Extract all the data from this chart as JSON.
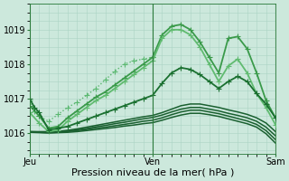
{
  "background_color": "#cce8dc",
  "grid_color": "#aad4c4",
  "xlabel": "Pression niveau de la mer( hPa )",
  "yticks": [
    1016,
    1017,
    1018,
    1019
  ],
  "xtick_labels": [
    "Jeu",
    "Ven",
    "Sam"
  ],
  "xtick_positions": [
    0,
    13,
    26
  ],
  "xlim": [
    0,
    26
  ],
  "ylim": [
    1015.4,
    1019.6
  ],
  "series": [
    {
      "x": [
        0,
        0.5,
        1,
        2,
        3,
        4,
        5,
        6,
        7,
        8,
        9,
        10,
        11,
        12,
        13
      ],
      "y": [
        1016.95,
        1016.65,
        1016.5,
        1016.35,
        1016.55,
        1016.75,
        1016.9,
        1017.1,
        1017.3,
        1017.55,
        1017.8,
        1018.0,
        1018.1,
        1018.15,
        1018.2
      ],
      "marker": "+",
      "lw": 1.0,
      "color": "#5ab870",
      "ms": 4,
      "ls": ":"
    },
    {
      "x": [
        0,
        1,
        2,
        3,
        4,
        5,
        6,
        7,
        8,
        9,
        10,
        11,
        12,
        13,
        14,
        15,
        16,
        17,
        18,
        19,
        20,
        21,
        22,
        23,
        24,
        25,
        26
      ],
      "y": [
        1016.8,
        1016.5,
        1016.15,
        1016.2,
        1016.45,
        1016.65,
        1016.85,
        1017.05,
        1017.2,
        1017.4,
        1017.6,
        1017.8,
        1018.0,
        1018.2,
        1018.85,
        1019.1,
        1019.15,
        1019.0,
        1018.65,
        1018.2,
        1017.75,
        1018.75,
        1018.8,
        1018.45,
        1017.75,
        1016.95,
        1016.45
      ],
      "marker": "+",
      "lw": 1.3,
      "color": "#3a9a4a",
      "ms": 4,
      "ls": "-"
    },
    {
      "x": [
        0,
        1,
        2,
        3,
        4,
        5,
        6,
        7,
        8,
        9,
        10,
        11,
        12,
        13,
        14,
        15,
        16,
        17,
        18,
        19,
        20,
        21,
        22,
        23,
        24,
        25,
        26
      ],
      "y": [
        1016.6,
        1016.3,
        1016.05,
        1016.1,
        1016.35,
        1016.55,
        1016.75,
        1016.95,
        1017.1,
        1017.3,
        1017.5,
        1017.7,
        1017.9,
        1018.1,
        1018.75,
        1019.0,
        1019.0,
        1018.85,
        1018.5,
        1018.0,
        1017.5,
        1017.95,
        1018.15,
        1017.75,
        1017.15,
        1016.75,
        1016.25
      ],
      "marker": "+",
      "lw": 1.3,
      "color": "#60bb70",
      "ms": 4,
      "ls": "-"
    },
    {
      "x": [
        0,
        0.5,
        1,
        2,
        3,
        4,
        5,
        6,
        7,
        8,
        9,
        10,
        11,
        12,
        13,
        14,
        15,
        16,
        17,
        18,
        19,
        20,
        21,
        22,
        23,
        24,
        25,
        26
      ],
      "y": [
        1017.0,
        1016.75,
        1016.6,
        1016.1,
        1016.15,
        1016.2,
        1016.3,
        1016.4,
        1016.5,
        1016.6,
        1016.7,
        1016.8,
        1016.9,
        1017.0,
        1017.1,
        1017.45,
        1017.75,
        1017.9,
        1017.85,
        1017.7,
        1017.5,
        1017.3,
        1017.5,
        1017.65,
        1017.5,
        1017.15,
        1016.85,
        1016.45
      ],
      "marker": "+",
      "lw": 1.3,
      "color": "#1a7030",
      "ms": 4,
      "ls": "-"
    },
    {
      "x": [
        0,
        1,
        2,
        3,
        4,
        5,
        6,
        7,
        8,
        9,
        10,
        11,
        12,
        13,
        14,
        15,
        16,
        17,
        18,
        19,
        20,
        21,
        22,
        23,
        24,
        25,
        26
      ],
      "y": [
        1016.05,
        1016.05,
        1016.05,
        1016.06,
        1016.09,
        1016.13,
        1016.18,
        1016.23,
        1016.28,
        1016.33,
        1016.38,
        1016.43,
        1016.48,
        1016.52,
        1016.6,
        1016.7,
        1016.8,
        1016.85,
        1016.85,
        1016.8,
        1016.75,
        1016.68,
        1016.62,
        1016.55,
        1016.45,
        1016.3,
        1016.05
      ],
      "marker": null,
      "lw": 1.1,
      "color": "#1a6030",
      "ms": 0,
      "ls": "-"
    },
    {
      "x": [
        0,
        1,
        2,
        3,
        4,
        5,
        6,
        7,
        8,
        9,
        10,
        11,
        12,
        13,
        14,
        15,
        16,
        17,
        18,
        19,
        20,
        21,
        22,
        23,
        24,
        25,
        26
      ],
      "y": [
        1016.05,
        1016.04,
        1016.04,
        1016.05,
        1016.07,
        1016.1,
        1016.14,
        1016.19,
        1016.23,
        1016.28,
        1016.32,
        1016.37,
        1016.42,
        1016.46,
        1016.53,
        1016.62,
        1016.7,
        1016.75,
        1016.75,
        1016.7,
        1016.65,
        1016.58,
        1016.52,
        1016.45,
        1016.35,
        1016.18,
        1015.93
      ],
      "marker": null,
      "lw": 1.1,
      "color": "#1a6030",
      "ms": 0,
      "ls": "-"
    },
    {
      "x": [
        0,
        1,
        2,
        3,
        4,
        5,
        6,
        7,
        8,
        9,
        10,
        11,
        12,
        13,
        14,
        15,
        16,
        17,
        18,
        19,
        20,
        21,
        22,
        23,
        24,
        25,
        26
      ],
      "y": [
        1016.04,
        1016.03,
        1016.02,
        1016.03,
        1016.05,
        1016.08,
        1016.11,
        1016.15,
        1016.18,
        1016.22,
        1016.26,
        1016.3,
        1016.35,
        1016.38,
        1016.45,
        1016.54,
        1016.62,
        1016.67,
        1016.67,
        1016.62,
        1016.57,
        1016.5,
        1016.43,
        1016.36,
        1016.26,
        1016.08,
        1015.82
      ],
      "marker": null,
      "lw": 1.1,
      "color": "#1a6030",
      "ms": 0,
      "ls": "-"
    },
    {
      "x": [
        0,
        1,
        2,
        3,
        4,
        5,
        6,
        7,
        8,
        9,
        10,
        11,
        12,
        13,
        14,
        15,
        16,
        17,
        18,
        19,
        20,
        21,
        22,
        23,
        24,
        25,
        26
      ],
      "y": [
        1016.03,
        1016.02,
        1016.01,
        1016.02,
        1016.03,
        1016.05,
        1016.08,
        1016.11,
        1016.14,
        1016.17,
        1016.21,
        1016.24,
        1016.28,
        1016.31,
        1016.38,
        1016.46,
        1016.53,
        1016.58,
        1016.58,
        1016.54,
        1016.49,
        1016.42,
        1016.35,
        1016.28,
        1016.18,
        1015.99,
        1015.72
      ],
      "marker": null,
      "lw": 1.1,
      "color": "#1a6030",
      "ms": 0,
      "ls": "-"
    }
  ],
  "vlines": [
    0,
    13,
    26
  ],
  "vline_color": "#2a7a3a",
  "vline_lw": 0.8,
  "tick_fontsize": 7,
  "xlabel_fontsize": 8
}
